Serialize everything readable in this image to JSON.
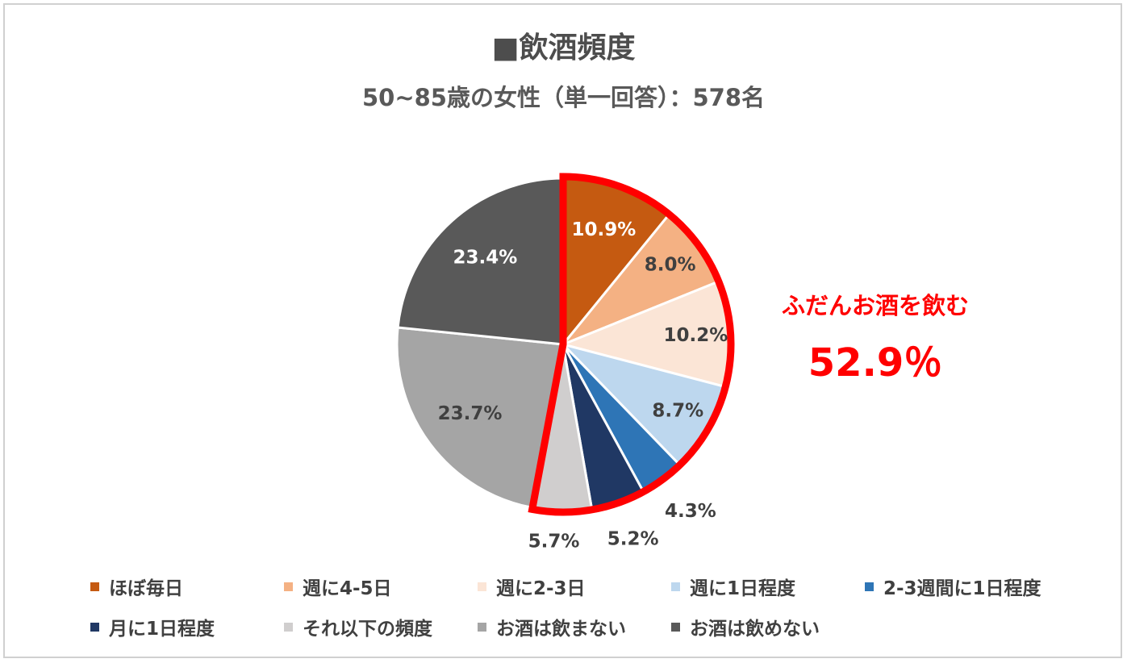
{
  "chart_data": {
    "type": "pie",
    "title": "■飲酒頻度",
    "subtitle": "50~85歳の女性（単一回答）：578名",
    "slices": [
      {
        "name": "ほぼ毎日",
        "value": 10.9,
        "label": "10.9%",
        "color": "#c55a11",
        "label_color": "#ffffff"
      },
      {
        "name": "週に4-5日",
        "value": 8.0,
        "label": "8.0%",
        "color": "#f4b183",
        "label_color": "#404040"
      },
      {
        "name": "週に2-3日",
        "value": 10.2,
        "label": "10.2%",
        "color": "#fbe5d6",
        "label_color": "#404040"
      },
      {
        "name": "週に1日程度",
        "value": 8.7,
        "label": "8.7%",
        "color": "#bdd7ee",
        "label_color": "#404040"
      },
      {
        "name": "2-3週間に1日程度",
        "value": 4.3,
        "label": "4.3%",
        "color": "#2e75b6",
        "label_color": "#404040"
      },
      {
        "name": "月に1日程度",
        "value": 5.2,
        "label": "5.2%",
        "color": "#203864",
        "label_color": "#404040"
      },
      {
        "name": "それ以下の頻度",
        "value": 5.7,
        "label": "5.7%",
        "color": "#d0cece",
        "label_color": "#404040"
      },
      {
        "name": "お酒は飲まない",
        "value": 23.7,
        "label": "23.7%",
        "color": "#a5a5a5",
        "label_color": "#404040"
      },
      {
        "name": "お酒は飲めない",
        "value": 23.4,
        "label": "23.4%",
        "color": "#595959",
        "label_color": "#ffffff"
      }
    ],
    "highlight": {
      "label": "ふだんお酒を飲む",
      "value": "52.9％",
      "color": "#ff0000",
      "slices": [
        "ほぼ毎日",
        "週に4-5日",
        "週に2-3日",
        "週に1日程度",
        "2-3週間に1日程度",
        "月に1日程度",
        "それ以下の頻度"
      ]
    },
    "legend_position": "bottom"
  }
}
